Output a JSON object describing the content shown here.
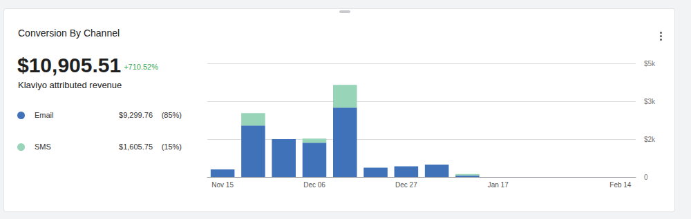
{
  "summary": {
    "value": "$10,905.51",
    "change": "+710.52%",
    "caption": "Klaviyo attributed revenue",
    "channels": [
      {
        "amount": "$9,299.76",
        "share": "(85%)"
      },
      {
        "amount": "$1,605.75",
        "share": "(15%)"
      }
    ]
  },
  "chart_data": {
    "type": "bar",
    "title": "Conversion By Channel",
    "stacked": true,
    "grid": true,
    "categories": [
      "Nov 15",
      null,
      null,
      "Dec 06",
      null,
      null,
      "Dec 27",
      null,
      null,
      "Jan 17",
      null,
      null,
      null,
      "Feb 14"
    ],
    "series": [
      {
        "name": "Email",
        "color": "#3f72b9",
        "values": [
          300,
          2040,
          1500,
          1360,
          2750,
          365,
          420,
          490,
          60,
          0,
          0,
          0,
          0,
          0
        ]
      },
      {
        "name": "SMS",
        "color": "#98d4b8",
        "values": [
          0,
          490,
          0,
          160,
          900,
          0,
          0,
          0,
          55,
          0,
          0,
          0,
          0,
          0
        ]
      }
    ],
    "ylim": [
      0,
      4500
    ],
    "yticks": [
      0,
      {
        "value": 1500,
        "label": "$2k"
      },
      {
        "value": 3000,
        "label": "$3k"
      },
      {
        "value": 4500,
        "label": "$5k"
      }
    ]
  }
}
